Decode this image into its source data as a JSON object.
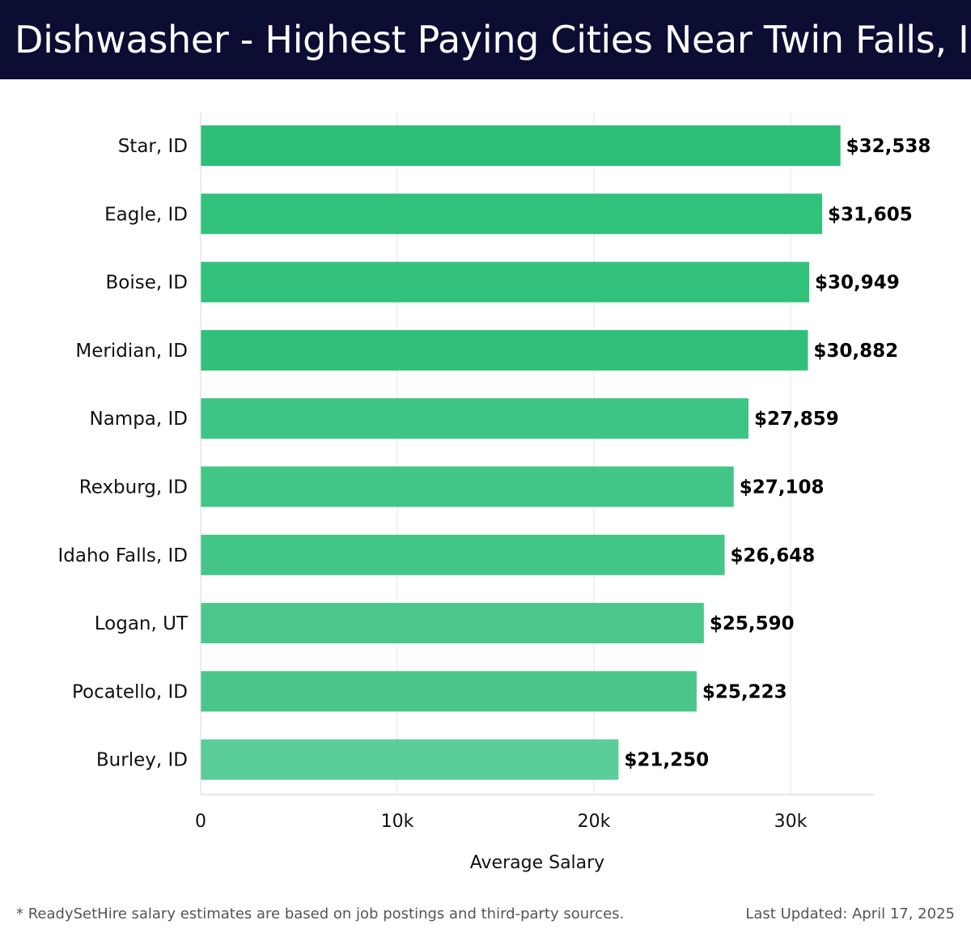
{
  "header": {
    "title": "Dishwasher - Highest Paying Cities Near Twin Falls, ID"
  },
  "chart_data": {
    "type": "bar",
    "orientation": "horizontal",
    "title": "Dishwasher - Highest Paying Cities Near Twin Falls, ID",
    "xlabel": "Average Salary",
    "ylabel": "",
    "xlim": [
      0,
      34200
    ],
    "grid": true,
    "categories": [
      "Star, ID",
      "Eagle, ID",
      "Boise, ID",
      "Meridian, ID",
      "Nampa, ID",
      "Rexburg, ID",
      "Idaho Falls, ID",
      "Logan, UT",
      "Pocatello, ID",
      "Burley, ID"
    ],
    "values": [
      32538,
      31605,
      30949,
      30882,
      27859,
      27108,
      26648,
      25590,
      25223,
      21250
    ],
    "value_labels": [
      "$32,538",
      "$31,605",
      "$30,949",
      "$30,882",
      "$27,859",
      "$27,108",
      "$26,648",
      "$25,590",
      "$25,223",
      "$21,250"
    ],
    "ticks": [
      0,
      10000,
      20000,
      30000
    ],
    "tick_labels": [
      "0",
      "10k",
      "20k",
      "30k"
    ],
    "bar_colors": [
      "#2dbf78",
      "#31c27b",
      "#33c27c",
      "#30c07a",
      "#3cc584",
      "#42c687",
      "#44c689",
      "#4bc78c",
      "#4ac68b",
      "#5acd98"
    ]
  },
  "footer": {
    "note": "* ReadySetHire salary estimates are based on job postings and third-party sources.",
    "updated": "Last Updated: April 17, 2025"
  }
}
